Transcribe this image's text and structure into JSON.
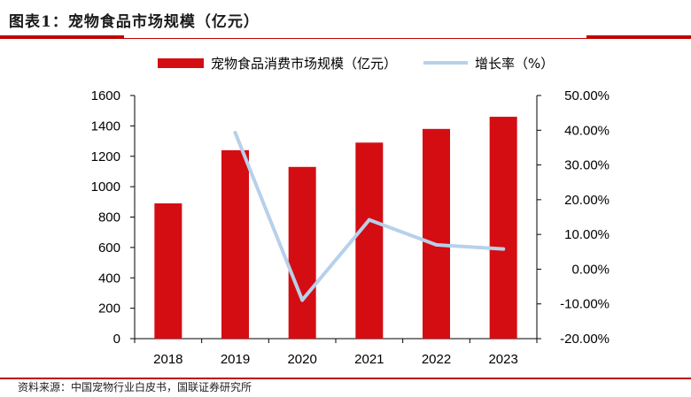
{
  "header": {
    "title": "图表1：宠物食品市场规模（亿元）"
  },
  "source": "资料来源：中国宠物行业白皮书，国联证券研究所",
  "colors": {
    "bar": "#d40d12",
    "line": "#b7d1ea",
    "accent": "#c00000"
  },
  "chart_data": {
    "type": "bar",
    "title": "图表1：宠物食品市场规模（亿元）",
    "categories": [
      "2018",
      "2019",
      "2020",
      "2021",
      "2022",
      "2023"
    ],
    "series": [
      {
        "name": "宠物食品消费市场规模（亿元）",
        "type": "bar",
        "axis": "left",
        "values": [
          890,
          1240,
          1130,
          1290,
          1380,
          1460
        ]
      },
      {
        "name": "增长率（%）",
        "type": "line",
        "axis": "right",
        "values": [
          null,
          39.3,
          -8.9,
          14.2,
          7.0,
          5.8
        ]
      }
    ],
    "y_left": {
      "min": 0,
      "max": 1600,
      "step": 200,
      "ticks": [
        "0",
        "200",
        "400",
        "600",
        "800",
        "1000",
        "1200",
        "1400",
        "1600"
      ]
    },
    "y_right": {
      "min": -20,
      "max": 50,
      "step": 10,
      "ticks": [
        "-20.00%",
        "-10.00%",
        "0.00%",
        "10.00%",
        "20.00%",
        "30.00%",
        "40.00%",
        "50.00%"
      ]
    },
    "legend_position": "top-center",
    "grid": false
  }
}
